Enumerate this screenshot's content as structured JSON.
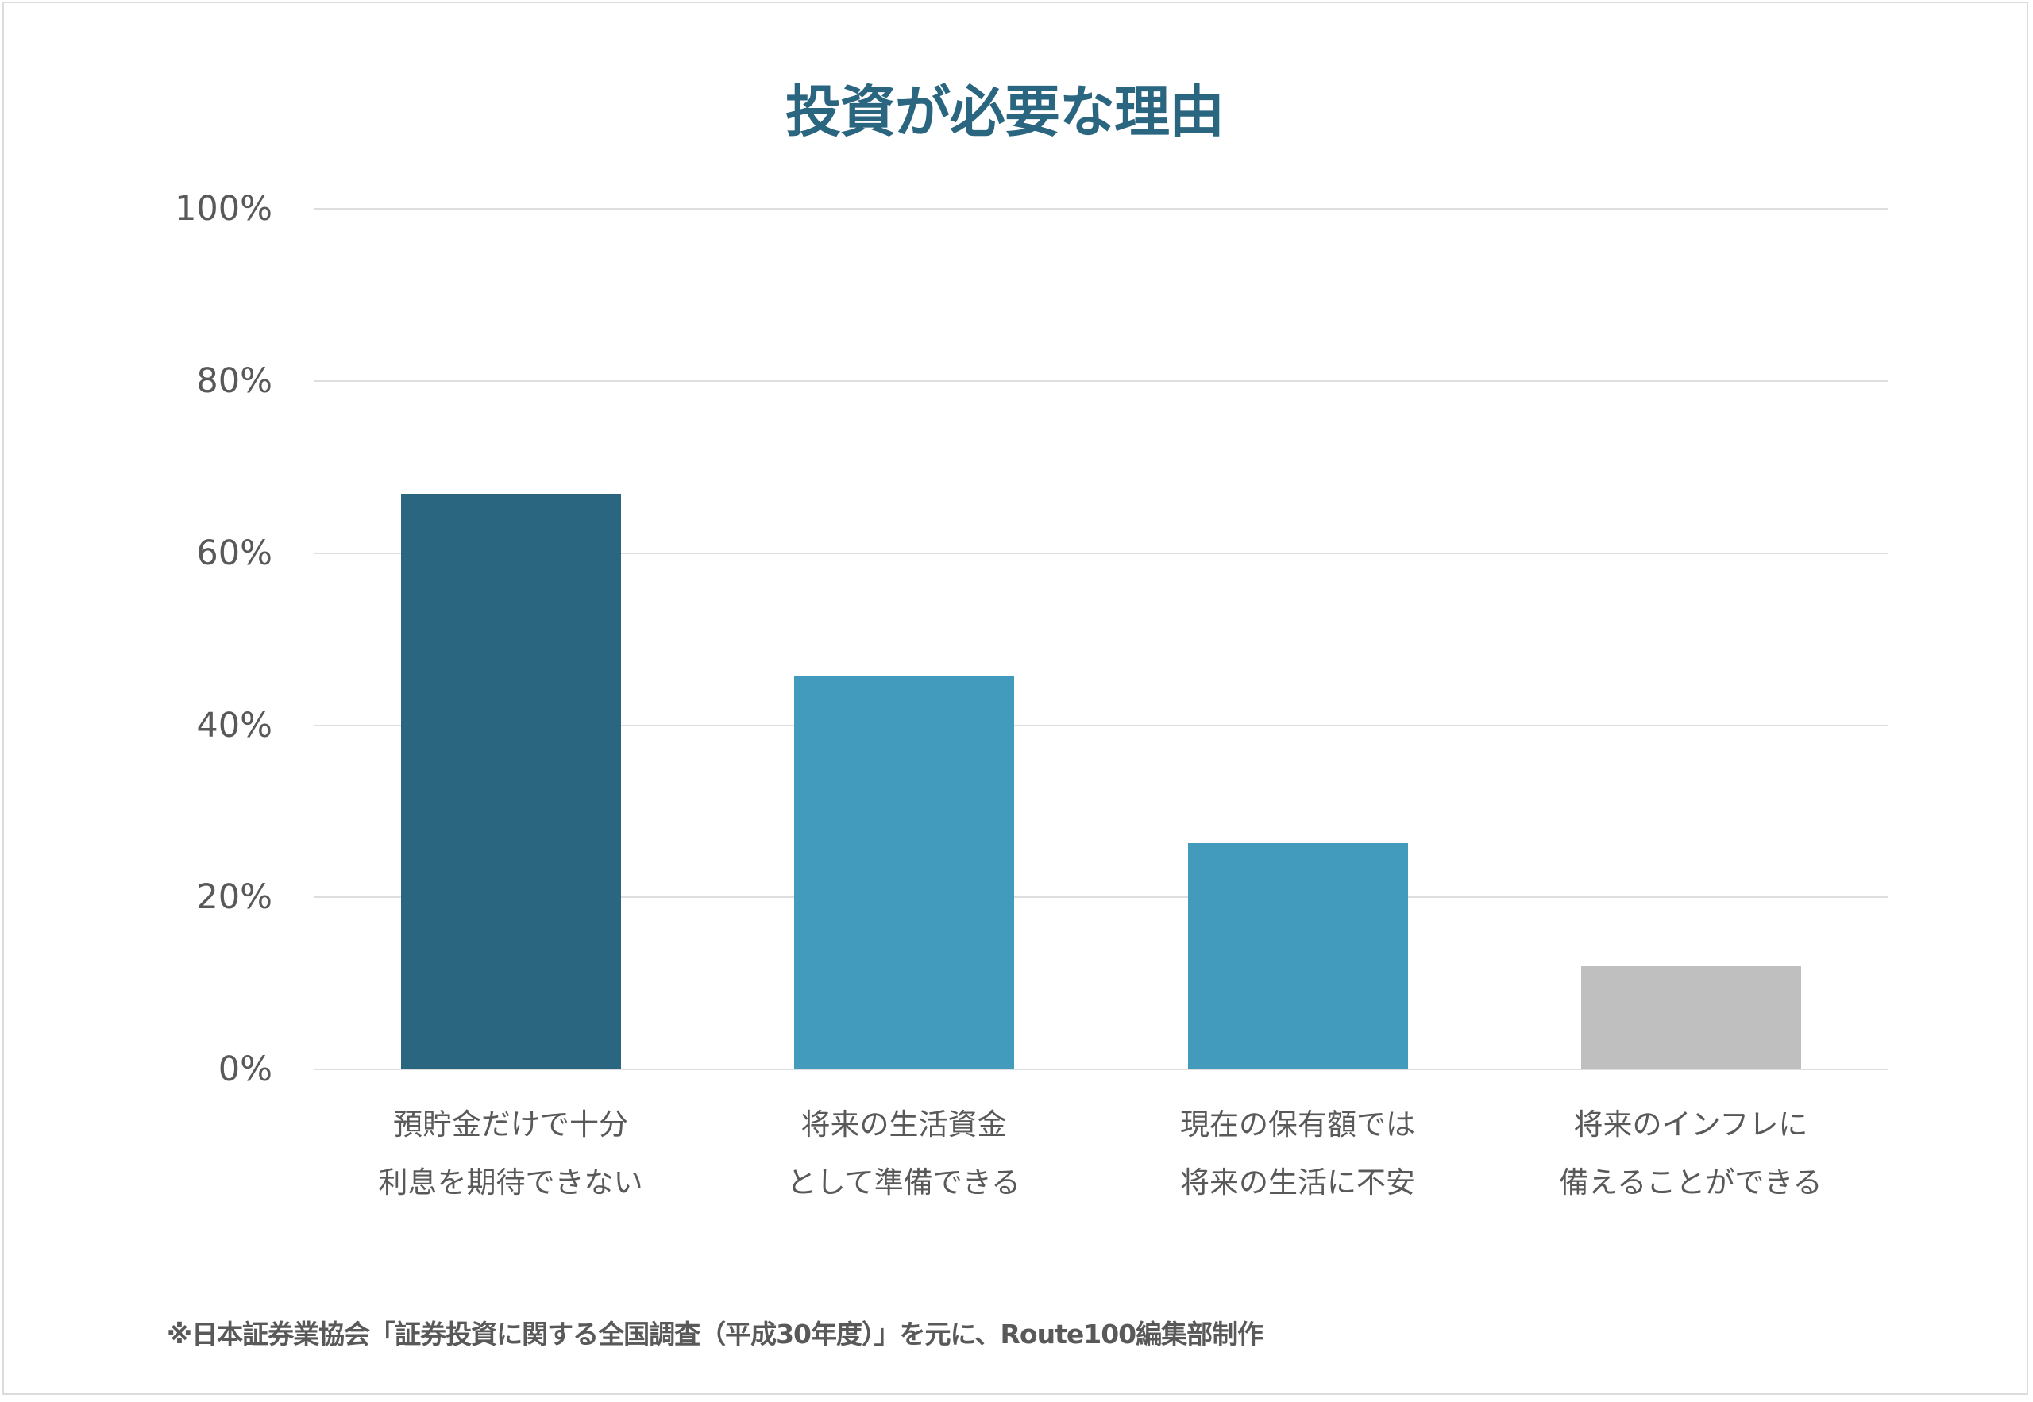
{
  "chart_data": {
    "type": "bar",
    "title": "投資が必要な理由",
    "xlabel": "",
    "ylabel": "",
    "ylim": [
      0,
      100
    ],
    "yticks": [
      "0%",
      "20%",
      "40%",
      "60%",
      "80%",
      "100%"
    ],
    "grid": true,
    "legend": null,
    "categories": [
      "預貯金だけで十分利息を期待できない",
      "将来の生活資金として準備できる",
      "現在の保有額では将来の生活に不安",
      "将来のインフレに備えることができる"
    ],
    "values": [
      66.9,
      45.7,
      26.3,
      12.0
    ],
    "unit": "%",
    "bar_colors": [
      "#2a6680",
      "#429abd",
      "#429abd",
      "#bfbfbf"
    ]
  },
  "title": "投資が必要な理由",
  "y_axis": {
    "ticks": [
      {
        "label": "100%",
        "value": 100
      },
      {
        "label": "80%",
        "value": 80
      },
      {
        "label": "60%",
        "value": 60
      },
      {
        "label": "40%",
        "value": 40
      },
      {
        "label": "20%",
        "value": 20
      },
      {
        "label": "0%",
        "value": 0
      }
    ]
  },
  "categories": [
    {
      "line1": "預貯金だけで十分",
      "line2": "利息を期待できない",
      "value": 66.9,
      "color": "#2a6680"
    },
    {
      "line1": "将来の生活資金",
      "line2": "として準備できる",
      "value": 45.7,
      "color": "#429abd"
    },
    {
      "line1": "現在の保有額では",
      "line2": "将来の生活に不安",
      "value": 26.3,
      "color": "#429abd"
    },
    {
      "line1": "将来のインフレに",
      "line2": "備えることができる",
      "value": 12.0,
      "color": "#bfbfbf"
    }
  ],
  "footnote": "※日本証券業協会「証券投資に関する全国調査（平成30年度）」を元に、Route100編集部制作",
  "colors": {
    "title": "#2a6680",
    "gridline": "#dedede",
    "text": "#595959",
    "frame_border": "#dcdcdc"
  }
}
